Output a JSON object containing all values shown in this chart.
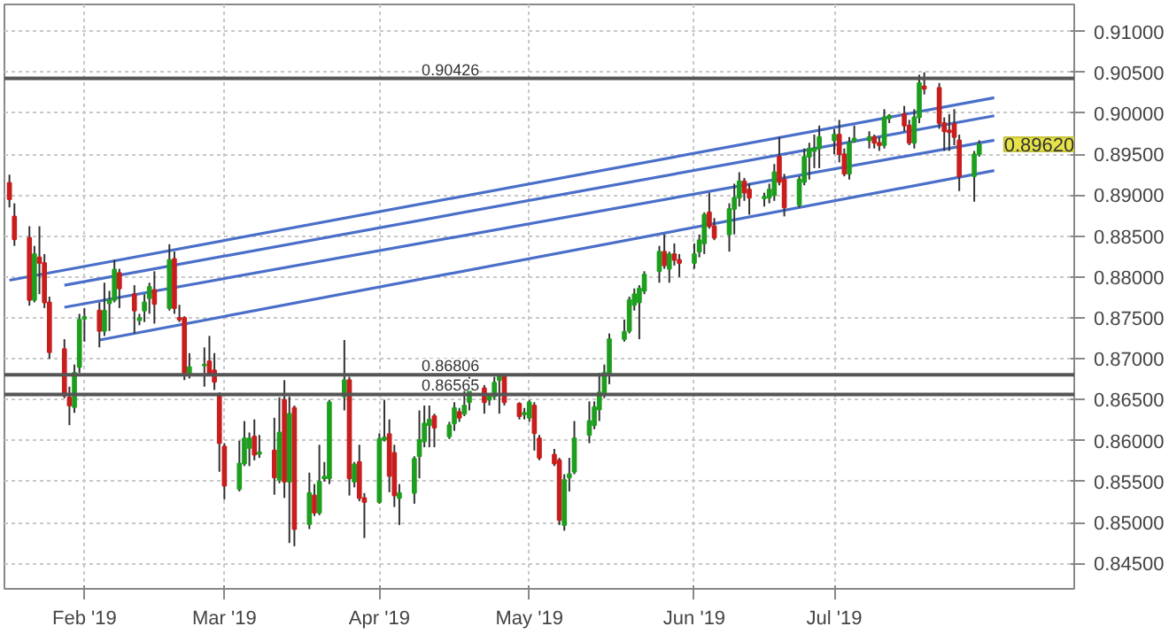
{
  "chart_data": {
    "type": "candlestick",
    "x": [
      "2019-01-17",
      "2019-01-18",
      "2019-01-21",
      "2019-01-22",
      "2019-01-23",
      "2019-01-24",
      "2019-01-25",
      "2019-01-28",
      "2019-01-29",
      "2019-01-30",
      "2019-01-31",
      "2019-02-01",
      "2019-02-04",
      "2019-02-05",
      "2019-02-06",
      "2019-02-07",
      "2019-02-08",
      "2019-02-11",
      "2019-02-12",
      "2019-02-13",
      "2019-02-14",
      "2019-02-15",
      "2019-02-18",
      "2019-02-19",
      "2019-02-20",
      "2019-02-21",
      "2019-02-22",
      "2019-02-25",
      "2019-02-26",
      "2019-02-27",
      "2019-02-28",
      "2019-03-01",
      "2019-03-04",
      "2019-03-05",
      "2019-03-06",
      "2019-03-07",
      "2019-03-08",
      "2019-03-11",
      "2019-03-12",
      "2019-03-13",
      "2019-03-14",
      "2019-03-15",
      "2019-03-18",
      "2019-03-19",
      "2019-03-20",
      "2019-03-21",
      "2019-03-22",
      "2019-03-25",
      "2019-03-26",
      "2019-03-27",
      "2019-03-28",
      "2019-03-29",
      "2019-04-01",
      "2019-04-02",
      "2019-04-03",
      "2019-04-04",
      "2019-04-05",
      "2019-04-08",
      "2019-04-09",
      "2019-04-10",
      "2019-04-11",
      "2019-04-12",
      "2019-04-15",
      "2019-04-16",
      "2019-04-17",
      "2019-04-18",
      "2019-04-19",
      "2019-04-22",
      "2019-04-23",
      "2019-04-24",
      "2019-04-25",
      "2019-04-26",
      "2019-04-29",
      "2019-04-30",
      "2019-05-01",
      "2019-05-02",
      "2019-05-03",
      "2019-05-06",
      "2019-05-07",
      "2019-05-08",
      "2019-05-09",
      "2019-05-10",
      "2019-05-13",
      "2019-05-14",
      "2019-05-15",
      "2019-05-16",
      "2019-05-17",
      "2019-05-20",
      "2019-05-21",
      "2019-05-22",
      "2019-05-23",
      "2019-05-24",
      "2019-05-27",
      "2019-05-28",
      "2019-05-29",
      "2019-05-30",
      "2019-05-31",
      "2019-06-03",
      "2019-06-04",
      "2019-06-05",
      "2019-06-06",
      "2019-06-07",
      "2019-06-10",
      "2019-06-11",
      "2019-06-12",
      "2019-06-13",
      "2019-06-14",
      "2019-06-17",
      "2019-06-18",
      "2019-06-19",
      "2019-06-20",
      "2019-06-21",
      "2019-06-24",
      "2019-06-25",
      "2019-06-26",
      "2019-06-27",
      "2019-06-28",
      "2019-07-01",
      "2019-07-02",
      "2019-07-03",
      "2019-07-04",
      "2019-07-05",
      "2019-07-08",
      "2019-07-09",
      "2019-07-10",
      "2019-07-11",
      "2019-07-12",
      "2019-07-15",
      "2019-07-16",
      "2019-07-17",
      "2019-07-18",
      "2019-07-19",
      "2019-07-22",
      "2019-07-23",
      "2019-07-24",
      "2019-07-25",
      "2019-07-26",
      "2019-07-29",
      "2019-07-30"
    ],
    "ohlc": [
      [
        0.8915,
        0.8925,
        0.8885,
        0.8895
      ],
      [
        0.8874,
        0.889,
        0.8838,
        0.8846
      ],
      [
        0.8848,
        0.8862,
        0.8765,
        0.8772
      ],
      [
        0.8772,
        0.8838,
        0.8769,
        0.8828
      ],
      [
        0.8824,
        0.8862,
        0.8779,
        0.8817
      ],
      [
        0.8817,
        0.8828,
        0.8762,
        0.8769
      ],
      [
        0.8769,
        0.8776,
        0.87,
        0.8708
      ],
      [
        0.8712,
        0.8724,
        0.8652,
        0.8655
      ],
      [
        0.8653,
        0.8666,
        0.8619,
        0.8643
      ],
      [
        0.8641,
        0.8693,
        0.8634,
        0.8683
      ],
      [
        0.869,
        0.8755,
        0.8683,
        0.8748
      ],
      [
        0.8749,
        0.8762,
        0.8721,
        0.8751
      ],
      [
        0.8759,
        0.8769,
        0.8714,
        0.8734
      ],
      [
        0.8734,
        0.8793,
        0.8728,
        0.8759
      ],
      [
        0.8768,
        0.8783,
        0.8734,
        0.8772
      ],
      [
        0.8772,
        0.8821,
        0.8769,
        0.8809
      ],
      [
        0.8805,
        0.881,
        0.8762,
        0.8786
      ],
      [
        0.8779,
        0.879,
        0.8731,
        0.8759
      ],
      [
        0.8747,
        0.8755,
        0.8741,
        0.875
      ],
      [
        0.8759,
        0.8779,
        0.8745,
        0.8769
      ],
      [
        0.8774,
        0.8793,
        0.8755,
        0.8788
      ],
      [
        0.8784,
        0.8807,
        0.8743,
        0.8767
      ],
      [
        0.8762,
        0.884,
        0.8759,
        0.8821
      ],
      [
        0.8822,
        0.8831,
        0.8755,
        0.8762
      ],
      [
        0.875,
        0.8766,
        0.8745,
        0.8748
      ],
      [
        0.875,
        0.8752,
        0.8674,
        0.8683
      ],
      [
        0.8683,
        0.8707,
        0.8676,
        0.869
      ],
      [
        0.8692,
        0.8714,
        0.8666,
        0.8693
      ],
      [
        0.8697,
        0.8728,
        0.8679,
        0.8681
      ],
      [
        0.8686,
        0.8707,
        0.8662,
        0.8672
      ],
      [
        0.8655,
        0.8659,
        0.8562,
        0.8597
      ],
      [
        0.8593,
        0.8597,
        0.8528,
        0.8545
      ],
      [
        0.8541,
        0.86,
        0.8538,
        0.8572
      ],
      [
        0.8572,
        0.8624,
        0.8569,
        0.8603
      ],
      [
        0.8591,
        0.861,
        0.8569,
        0.8603
      ],
      [
        0.8605,
        0.8626,
        0.8576,
        0.8583
      ],
      [
        0.8584,
        0.8607,
        0.8579,
        0.8586
      ],
      [
        0.8588,
        0.8628,
        0.8534,
        0.8555
      ],
      [
        0.8552,
        0.8653,
        0.8548,
        0.861
      ],
      [
        0.865,
        0.8674,
        0.853,
        0.855
      ],
      [
        0.855,
        0.8654,
        0.8475,
        0.8633
      ],
      [
        0.864,
        0.8643,
        0.8471,
        0.8492
      ],
      [
        0.8498,
        0.8561,
        0.8492,
        0.8536
      ],
      [
        0.8533,
        0.8547,
        0.8508,
        0.8512
      ],
      [
        0.8512,
        0.8595,
        0.8509,
        0.855
      ],
      [
        0.8554,
        0.8574,
        0.855,
        0.8556
      ],
      [
        0.8554,
        0.865,
        0.8547,
        0.8647
      ],
      [
        0.8654,
        0.8723,
        0.8637,
        0.8674
      ],
      [
        0.8674,
        0.8678,
        0.8533,
        0.8554
      ],
      [
        0.855,
        0.8574,
        0.8543,
        0.8571
      ],
      [
        0.8574,
        0.8595,
        0.8526,
        0.853
      ],
      [
        0.853,
        0.8536,
        0.8481,
        0.8525
      ],
      [
        0.8525,
        0.8609,
        0.8523,
        0.8602
      ],
      [
        0.8601,
        0.865,
        0.8599,
        0.8604
      ],
      [
        0.8608,
        0.8626,
        0.8537,
        0.8557
      ],
      [
        0.8585,
        0.8595,
        0.8519,
        0.8533
      ],
      [
        0.853,
        0.8547,
        0.8497,
        0.8536
      ],
      [
        0.8536,
        0.8581,
        0.8523,
        0.8578
      ],
      [
        0.8581,
        0.8637,
        0.8554,
        0.8601
      ],
      [
        0.8599,
        0.8643,
        0.8592,
        0.8621
      ],
      [
        0.8619,
        0.8643,
        0.8592,
        0.8626
      ],
      [
        0.863,
        0.8633,
        0.8592,
        0.8616
      ],
      [
        0.8605,
        0.8623,
        0.8602,
        0.8619
      ],
      [
        0.8621,
        0.8647,
        0.8612,
        0.864
      ],
      [
        0.8635,
        0.864,
        0.8623,
        0.8628
      ],
      [
        0.8633,
        0.8661,
        0.863,
        0.8643
      ],
      [
        0.8647,
        0.8678,
        0.8637,
        0.8661
      ],
      [
        0.8664,
        0.8668,
        0.8633,
        0.8647
      ],
      [
        0.865,
        0.8657,
        0.8643,
        0.8654
      ],
      [
        0.8654,
        0.8678,
        0.865,
        0.8671
      ],
      [
        0.8674,
        0.8681,
        0.8633,
        0.8678
      ],
      [
        0.8678,
        0.8681,
        0.8643,
        0.8647
      ],
      [
        0.8645,
        0.8647,
        0.8626,
        0.863
      ],
      [
        0.8632,
        0.864,
        0.8626,
        0.8634
      ],
      [
        0.8628,
        0.865,
        0.8623,
        0.8647
      ],
      [
        0.8643,
        0.8647,
        0.8588,
        0.8609
      ],
      [
        0.8603,
        0.8607,
        0.8576,
        0.8579
      ],
      [
        0.8583,
        0.859,
        0.8569,
        0.8572
      ],
      [
        0.8576,
        0.8579,
        0.8497,
        0.8503
      ],
      [
        0.8497,
        0.8559,
        0.849,
        0.8552
      ],
      [
        0.8555,
        0.8579,
        0.8538,
        0.8559
      ],
      [
        0.8562,
        0.8624,
        0.8559,
        0.8603
      ],
      [
        0.8607,
        0.8648,
        0.8597,
        0.8624
      ],
      [
        0.8619,
        0.8648,
        0.8614,
        0.8641
      ],
      [
        0.8638,
        0.8683,
        0.8624,
        0.8659
      ],
      [
        0.8659,
        0.8693,
        0.8652,
        0.8683
      ],
      [
        0.8683,
        0.8731,
        0.8669,
        0.8724
      ],
      [
        0.8724,
        0.8748,
        0.8721,
        0.8733
      ],
      [
        0.8734,
        0.8776,
        0.8731,
        0.8772
      ],
      [
        0.8766,
        0.8786,
        0.8759,
        0.8779
      ],
      [
        0.8769,
        0.879,
        0.8724,
        0.8786
      ],
      [
        0.8783,
        0.8807,
        0.8779,
        0.8803
      ],
      [
        0.8807,
        0.8838,
        0.8793,
        0.8831
      ],
      [
        0.8831,
        0.8852,
        0.881,
        0.8814
      ],
      [
        0.881,
        0.8831,
        0.8793,
        0.8828
      ],
      [
        0.8828,
        0.8841,
        0.8814,
        0.8821
      ],
      [
        0.8821,
        0.8828,
        0.88,
        0.8817
      ],
      [
        0.8817,
        0.8841,
        0.881,
        0.8828
      ],
      [
        0.8831,
        0.8852,
        0.8824,
        0.8845
      ],
      [
        0.8841,
        0.8879,
        0.8828,
        0.8876
      ],
      [
        0.8879,
        0.8903,
        0.8859,
        0.8862
      ],
      [
        0.8862,
        0.8872,
        0.8845,
        0.8848
      ],
      [
        0.8852,
        0.889,
        0.8831,
        0.8883
      ],
      [
        0.8883,
        0.8914,
        0.8852,
        0.8897
      ],
      [
        0.8897,
        0.8928,
        0.8886,
        0.8917
      ],
      [
        0.8917,
        0.8921,
        0.8893,
        0.8903
      ],
      [
        0.8907,
        0.8914,
        0.8876,
        0.8897
      ],
      [
        0.8896,
        0.8903,
        0.8886,
        0.8898
      ],
      [
        0.8897,
        0.8914,
        0.889,
        0.8907
      ],
      [
        0.89,
        0.8938,
        0.8893,
        0.8928
      ],
      [
        0.8947,
        0.8971,
        0.8912,
        0.8916
      ],
      [
        0.8919,
        0.8926,
        0.8874,
        0.8885
      ],
      [
        0.8888,
        0.8923,
        0.8885,
        0.8919
      ],
      [
        0.8916,
        0.8957,
        0.8912,
        0.8947
      ],
      [
        0.8947,
        0.8964,
        0.8919,
        0.8957
      ],
      [
        0.8954,
        0.8974,
        0.8933,
        0.8957
      ],
      [
        0.8957,
        0.8985,
        0.8933,
        0.8971
      ],
      [
        0.8967,
        0.8981,
        0.895,
        0.8974
      ],
      [
        0.8974,
        0.8992,
        0.894,
        0.895
      ],
      [
        0.895,
        0.8957,
        0.8923,
        0.8926
      ],
      [
        0.8926,
        0.8971,
        0.8919,
        0.8964
      ],
      [
        0.8966,
        0.8985,
        0.8964,
        0.8969
      ],
      [
        0.8967,
        0.8978,
        0.8957,
        0.8971
      ],
      [
        0.8971,
        0.8974,
        0.8957,
        0.8964
      ],
      [
        0.8964,
        0.8971,
        0.8954,
        0.8961
      ],
      [
        0.8961,
        0.9005,
        0.8957,
        0.8995
      ],
      [
        0.8994,
        0.8999,
        0.8988,
        0.8997
      ],
      [
        0.8999,
        0.9009,
        0.8978,
        0.8985
      ],
      [
        0.8985,
        0.8992,
        0.8961,
        0.8964
      ],
      [
        0.8964,
        0.9005,
        0.8957,
        0.8995
      ],
      [
        0.8995,
        0.9047,
        0.8988,
        0.9037
      ],
      [
        0.9033,
        0.905,
        0.9023,
        0.903
      ],
      [
        0.9031,
        0.9037,
        0.8981,
        0.8988
      ],
      [
        0.8988,
        0.8995,
        0.8954,
        0.8978
      ],
      [
        0.8979,
        0.8999,
        0.8954,
        0.8977
      ],
      [
        0.8987,
        0.9005,
        0.8961,
        0.8971
      ],
      [
        0.8967,
        0.8974,
        0.8905,
        0.8923
      ],
      [
        0.8923,
        0.8954,
        0.8892,
        0.895
      ],
      [
        0.895,
        0.8967,
        0.8947,
        0.8962
      ]
    ],
    "colors": [
      "#c81e1e",
      "#c81e1e",
      "#c81e1e",
      "#1e9e1e",
      "#c81e1e",
      "#c81e1e",
      "#c81e1e",
      "#c81e1e",
      "#c81e1e",
      "#1e9e1e",
      "#1e9e1e",
      "#1e9e1e",
      "#c81e1e",
      "#1e9e1e",
      "#1e9e1e",
      "#1e9e1e",
      "#c81e1e",
      "#c81e1e",
      "#1e9e1e",
      "#1e9e1e",
      "#1e9e1e",
      "#c81e1e",
      "#1e9e1e",
      "#c81e1e",
      "#c81e1e",
      "#c81e1e",
      "#1e9e1e",
      "#1e9e1e",
      "#c81e1e",
      "#c81e1e",
      "#c81e1e",
      "#c81e1e",
      "#1e9e1e",
      "#1e9e1e",
      "#1e9e1e",
      "#c81e1e",
      "#1e9e1e",
      "#c81e1e",
      "#1e9e1e",
      "#c81e1e",
      "#1e9e1e",
      "#c81e1e",
      "#1e9e1e",
      "#c81e1e",
      "#1e9e1e",
      "#1e9e1e",
      "#1e9e1e",
      "#1e9e1e",
      "#c81e1e",
      "#1e9e1e",
      "#c81e1e",
      "#c81e1e",
      "#1e9e1e",
      "#1e9e1e",
      "#c81e1e",
      "#c81e1e",
      "#1e9e1e",
      "#1e9e1e",
      "#1e9e1e",
      "#1e9e1e",
      "#1e9e1e",
      "#c81e1e",
      "#1e9e1e",
      "#1e9e1e",
      "#c81e1e",
      "#1e9e1e",
      "#1e9e1e",
      "#c81e1e",
      "#1e9e1e",
      "#1e9e1e",
      "#1e9e1e",
      "#c81e1e",
      "#c81e1e",
      "#1e9e1e",
      "#1e9e1e",
      "#c81e1e",
      "#c81e1e",
      "#c81e1e",
      "#c81e1e",
      "#1e9e1e",
      "#1e9e1e",
      "#1e9e1e",
      "#1e9e1e",
      "#1e9e1e",
      "#1e9e1e",
      "#1e9e1e",
      "#1e9e1e",
      "#1e9e1e",
      "#1e9e1e",
      "#1e9e1e",
      "#1e9e1e",
      "#1e9e1e",
      "#1e9e1e",
      "#c81e1e",
      "#1e9e1e",
      "#c81e1e",
      "#c81e1e",
      "#1e9e1e",
      "#1e9e1e",
      "#1e9e1e",
      "#c81e1e",
      "#c81e1e",
      "#1e9e1e",
      "#1e9e1e",
      "#1e9e1e",
      "#c81e1e",
      "#c81e1e",
      "#1e9e1e",
      "#1e9e1e",
      "#1e9e1e",
      "#c81e1e",
      "#c81e1e",
      "#1e9e1e",
      "#1e9e1e",
      "#1e9e1e",
      "#1e9e1e",
      "#1e9e1e",
      "#1e9e1e",
      "#c81e1e",
      "#c81e1e",
      "#1e9e1e",
      "#1e9e1e",
      "#1e9e1e",
      "#c81e1e",
      "#c81e1e",
      "#1e9e1e",
      "#1e9e1e",
      "#c81e1e",
      "#c81e1e",
      "#1e9e1e",
      "#1e9e1e",
      "#c81e1e",
      "#c81e1e",
      "#c81e1e",
      "#c81e1e",
      "#c81e1e",
      "#c81e1e",
      "#1e9e1e",
      "#1e9e1e"
    ],
    "series": [
      {
        "type": "line",
        "color": "#4a6fc9",
        "x": [
          "2019-01-17",
          "2019-08-02"
        ],
        "values": [
          0.8796,
          0.9019
        ]
      },
      {
        "type": "line",
        "color": "#4a6fc9",
        "x": [
          "2019-01-28",
          "2019-08-02"
        ],
        "values": [
          0.879,
          0.8997
        ]
      },
      {
        "type": "line",
        "color": "#4a6fc9",
        "x": [
          "2019-01-28",
          "2019-08-02"
        ],
        "values": [
          0.8763,
          0.8967
        ]
      },
      {
        "type": "line",
        "color": "#4a6fc9",
        "x": [
          "2019-02-04",
          "2019-08-02"
        ],
        "values": [
          0.8723,
          0.893
        ]
      }
    ],
    "ref_lines": [
      {
        "axis": "y",
        "value": 0.90426,
        "label": "0.90426",
        "color": "#555555"
      },
      {
        "axis": "y",
        "value": 0.86806,
        "label": "0.86806",
        "color": "#555555"
      },
      {
        "axis": "y",
        "value": 0.86565,
        "label": "0.86565",
        "color": "#555555"
      }
    ],
    "annotations": [
      {
        "text": "0.89620",
        "x": "2019-07-30",
        "y": 0.8962
      }
    ],
    "xlim": [
      "2019-01-16",
      "2019-08-18"
    ],
    "xticks": [
      {
        "value": "2019-02-01",
        "label": "Feb '19"
      },
      {
        "value": "2019-03-01",
        "label": "Mar '19"
      },
      {
        "value": "2019-04-01",
        "label": "Apr '19"
      },
      {
        "value": "2019-05-01",
        "label": "May '19"
      },
      {
        "value": "2019-06-03",
        "label": "Jun '19"
      },
      {
        "value": "2019-07-01",
        "label": "Jul '19"
      }
    ],
    "ylim": [
      0.8419,
      0.9133
    ],
    "yticks": [
      {
        "value": 0.845,
        "label": "0.84500"
      },
      {
        "value": 0.85,
        "label": "0.85000"
      },
      {
        "value": 0.855,
        "label": "0.85500"
      },
      {
        "value": 0.86,
        "label": "0.86000"
      },
      {
        "value": 0.865,
        "label": "0.86500"
      },
      {
        "value": 0.87,
        "label": "0.87000"
      },
      {
        "value": 0.875,
        "label": "0.87500"
      },
      {
        "value": 0.88,
        "label": "0.88000"
      },
      {
        "value": 0.885,
        "label": "0.88500"
      },
      {
        "value": 0.89,
        "label": "0.89000"
      },
      {
        "value": 0.895,
        "label": "0.89500"
      },
      {
        "value": 0.9,
        "label": "0.90000"
      },
      {
        "value": 0.905,
        "label": "0.90500"
      },
      {
        "value": 0.91,
        "label": "0.91000"
      }
    ],
    "grid": true
  }
}
